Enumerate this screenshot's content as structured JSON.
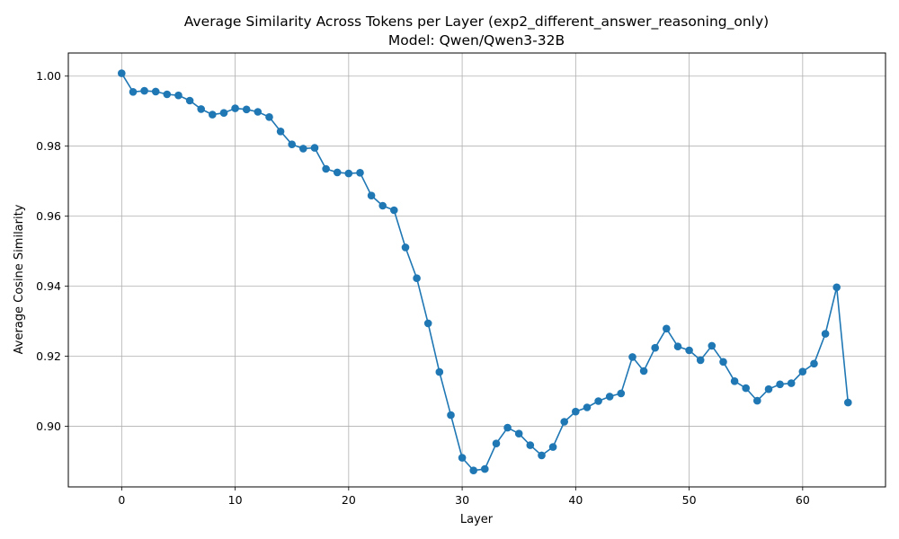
{
  "chart_data": {
    "type": "line",
    "title": "Average Similarity Across Tokens per Layer (exp2_different_answer_reasoning_only)",
    "subtitle": "Model: Qwen/Qwen3-32B",
    "xlabel": "Layer",
    "ylabel": "Average Cosine Similarity",
    "xlim": [
      -4.7,
      67.3
    ],
    "ylim": [
      0.8827,
      1.0066
    ],
    "xticks": [
      0,
      10,
      20,
      30,
      40,
      50,
      60
    ],
    "yticks": [
      0.9,
      0.92,
      0.94,
      0.96,
      0.98,
      1.0
    ],
    "xtick_labels": [
      "0",
      "10",
      "20",
      "30",
      "40",
      "50",
      "60"
    ],
    "ytick_labels": [
      "0.90",
      "0.92",
      "0.94",
      "0.96",
      "0.98",
      "1.00"
    ],
    "grid": true,
    "color": "#1f77b4",
    "marker": "circle",
    "x": [
      0,
      1,
      2,
      3,
      4,
      5,
      6,
      7,
      8,
      9,
      10,
      11,
      12,
      13,
      14,
      15,
      16,
      17,
      18,
      19,
      20,
      21,
      22,
      23,
      24,
      25,
      26,
      27,
      28,
      29,
      30,
      31,
      32,
      33,
      34,
      35,
      36,
      37,
      38,
      39,
      40,
      41,
      42,
      43,
      44,
      45,
      46,
      47,
      48,
      49,
      50,
      51,
      52,
      53,
      54,
      55,
      56,
      57,
      58,
      59,
      60,
      61,
      62,
      63,
      64
    ],
    "y": [
      1.0008,
      0.9955,
      0.9958,
      0.9956,
      0.9948,
      0.9945,
      0.993,
      0.9906,
      0.989,
      0.9895,
      0.9908,
      0.9905,
      0.9898,
      0.9883,
      0.9842,
      0.9805,
      0.9793,
      0.9795,
      0.9735,
      0.9725,
      0.9722,
      0.9724,
      0.9659,
      0.963,
      0.9617,
      0.9511,
      0.9423,
      0.9294,
      0.9155,
      0.9032,
      0.891,
      0.8874,
      0.8878,
      0.8951,
      0.8996,
      0.8979,
      0.8946,
      0.8917,
      0.8941,
      0.9013,
      0.9042,
      0.9054,
      0.9072,
      0.9085,
      0.9094,
      0.9198,
      0.9158,
      0.9224,
      0.9279,
      0.9228,
      0.9217,
      0.9189,
      0.923,
      0.9184,
      0.9129,
      0.9109,
      0.9073,
      0.9106,
      0.912,
      0.9123,
      0.9156,
      0.9179,
      0.9264,
      0.9397,
      0.9068
    ]
  }
}
